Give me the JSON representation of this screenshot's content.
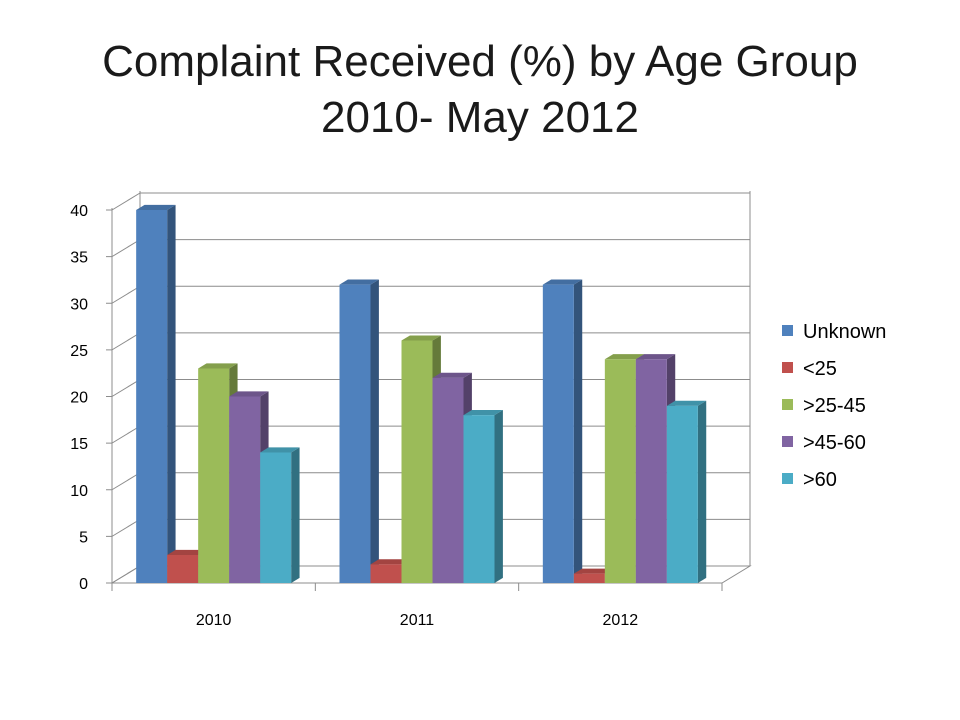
{
  "slide": {
    "title_line1": "Complaint Received (%) by Age Group",
    "title_line2": "2010- May 2012"
  },
  "colors": {
    "Unknown": "#4F81BD",
    "<25": "#C0504D",
    ">25-45": "#9BBB59",
    ">45-60": "#8064A2",
    ">60": "#4BACC6"
  },
  "chart_data": {
    "type": "bar",
    "style": "3d-clustered-column",
    "categories": [
      "2010",
      "2011",
      "2012"
    ],
    "series": [
      {
        "name": "Unknown",
        "values": [
          40,
          32,
          32
        ]
      },
      {
        "name": "<25",
        "values": [
          3,
          2,
          1
        ]
      },
      {
        "name": ">25-45",
        "values": [
          23,
          26,
          24
        ]
      },
      {
        "name": ">45-60",
        "values": [
          20,
          22,
          24
        ]
      },
      {
        "name": ">60",
        "values": [
          14,
          18,
          19
        ]
      }
    ],
    "y_ticks": [
      "0",
      "5",
      "10",
      "15",
      "20",
      "25",
      "30",
      "35",
      "40"
    ],
    "ylim": [
      0,
      40
    ],
    "grid": true,
    "legend": "right"
  }
}
